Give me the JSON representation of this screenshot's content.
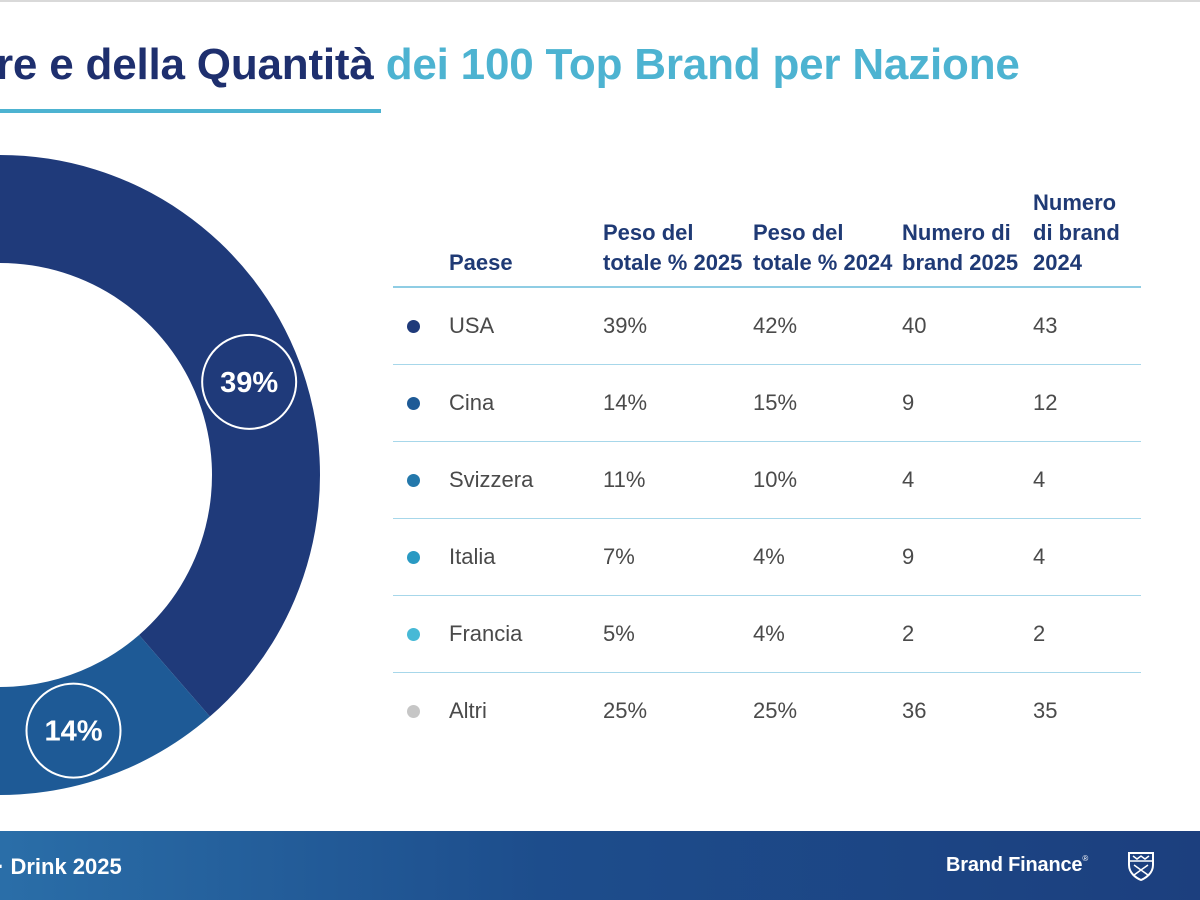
{
  "title": {
    "part1": "re e della Quantità",
    "part2": "dei 100 Top Brand per Nazione"
  },
  "table": {
    "headers": {
      "country": "Paese",
      "share2025": "Peso del totale % 2025",
      "share2024": "Peso del totale % 2024",
      "brands2025": "Numero di brand 2025",
      "brands2024": "Numero di brand 2024"
    },
    "rows": [
      {
        "country": "USA",
        "share2025": "39%",
        "share2024": "42%",
        "brands2025": "40",
        "brands2024": "43",
        "dot_color": "#1f3a7a"
      },
      {
        "country": "Cina",
        "share2025": "14%",
        "share2024": "15%",
        "brands2025": "9",
        "brands2024": "12",
        "dot_color": "#1e5a96"
      },
      {
        "country": "Svizzera",
        "share2025": "11%",
        "share2024": "10%",
        "brands2025": "4",
        "brands2024": "4",
        "dot_color": "#2478ab"
      },
      {
        "country": "Italia",
        "share2025": "7%",
        "share2024": "4%",
        "brands2025": "9",
        "brands2024": "4",
        "dot_color": "#2a9ac3"
      },
      {
        "country": "Francia",
        "share2025": "5%",
        "share2024": "4%",
        "brands2025": "2",
        "brands2024": "2",
        "dot_color": "#47b9d6"
      },
      {
        "country": "Altri",
        "share2025": "25%",
        "share2024": "25%",
        "brands2025": "36",
        "brands2024": "35",
        "dot_color": "#c6c6c6"
      }
    ]
  },
  "footer": {
    "report_text": "Drink 2025",
    "brand_name": "Brand Finance",
    "brand_mark": "®"
  },
  "chart_data": {
    "type": "pie",
    "style": "donut",
    "categories": [
      "USA",
      "Cina",
      "Svizzera",
      "Italia",
      "Francia",
      "Altri"
    ],
    "values": [
      39,
      14,
      11,
      7,
      5,
      25
    ],
    "labels": [
      "39%",
      "14%",
      "11%",
      "7%",
      "",
      ""
    ],
    "colors": [
      "#1f3a7a",
      "#1e5a96",
      "#2478ab",
      "#2a9ac3",
      "#47b9d6",
      "#c6c6c6"
    ]
  }
}
